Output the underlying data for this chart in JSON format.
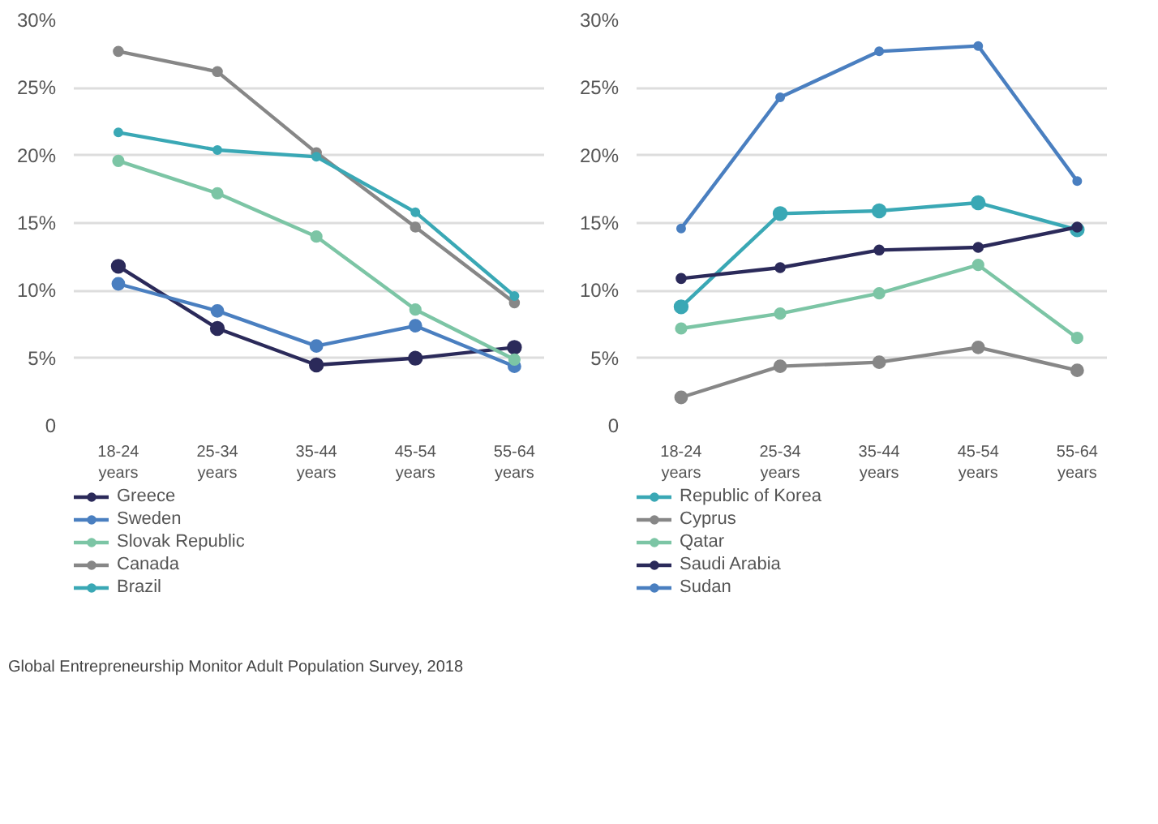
{
  "chart_data": [
    {
      "type": "line",
      "categories": [
        "18-24 years",
        "25-34 years",
        "35-44 years",
        "45-54 years",
        "55-64 years"
      ],
      "ylim": [
        0,
        30
      ],
      "yticks": [
        {
          "value": 0,
          "label": "0"
        },
        {
          "value": 5,
          "label": "5%"
        },
        {
          "value": 10,
          "label": "10%"
        },
        {
          "value": 15,
          "label": "15%"
        },
        {
          "value": 20,
          "label": "20%"
        },
        {
          "value": 25,
          "label": "25%"
        },
        {
          "value": 30,
          "label": "30%"
        }
      ],
      "grid": "y",
      "legend": "bottom",
      "marker": "circle",
      "line_style": "solid",
      "series": [
        {
          "name": "Greece",
          "color": "#2b2a5a",
          "values": [
            11.8,
            7.2,
            4.5,
            5.0,
            5.8
          ]
        },
        {
          "name": "Sweden",
          "color": "#4a7fc0",
          "values": [
            10.5,
            8.5,
            5.9,
            7.4,
            4.4
          ]
        },
        {
          "name": "Slovak Republic",
          "color": "#7cc5a5",
          "values": [
            19.6,
            17.2,
            14.0,
            8.6,
            4.9
          ]
        },
        {
          "name": "Canada",
          "color": "#878787",
          "values": [
            27.7,
            26.2,
            20.2,
            14.7,
            9.1
          ]
        },
        {
          "name": "Brazil",
          "color": "#3aa8b5",
          "values": [
            21.7,
            20.4,
            19.9,
            15.8,
            9.6
          ]
        }
      ],
      "annotations": [
        "Global Entrepreneurship Monitor Adult Population Survey, 2018"
      ]
    },
    {
      "type": "line",
      "categories": [
        "18-24 years",
        "25-34 years",
        "35-44 years",
        "45-54 years",
        "55-64 years"
      ],
      "ylim": [
        0,
        30
      ],
      "yticks": [
        {
          "value": 0,
          "label": "0"
        },
        {
          "value": 5,
          "label": "5%"
        },
        {
          "value": 10,
          "label": "10%"
        },
        {
          "value": 15,
          "label": "15%"
        },
        {
          "value": 20,
          "label": "20%"
        },
        {
          "value": 25,
          "label": "25%"
        },
        {
          "value": 30,
          "label": "30%"
        }
      ],
      "grid": "y",
      "legend": "bottom",
      "marker": "circle",
      "line_style": "solid",
      "series": [
        {
          "name": "Republic of Korea",
          "color": "#3aa8b5",
          "values": [
            8.8,
            15.7,
            15.9,
            16.5,
            14.5
          ]
        },
        {
          "name": "Cyprus",
          "color": "#878787",
          "values": [
            2.1,
            4.4,
            4.7,
            5.8,
            4.1
          ]
        },
        {
          "name": "Qatar",
          "color": "#7cc5a5",
          "values": [
            7.2,
            8.3,
            9.8,
            11.9,
            6.5
          ]
        },
        {
          "name": "Saudi Arabia",
          "color": "#2b2a5a",
          "values": [
            10.9,
            11.7,
            13.0,
            13.2,
            14.7
          ]
        },
        {
          "name": "Sudan",
          "color": "#4a7fc0",
          "values": [
            14.6,
            24.3,
            27.7,
            28.1,
            18.1
          ]
        }
      ]
    }
  ]
}
